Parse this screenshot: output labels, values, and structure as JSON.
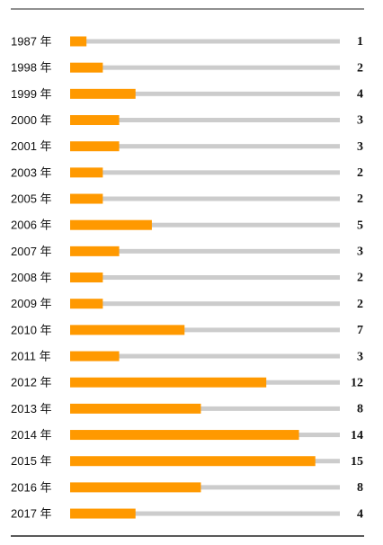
{
  "chart_data": {
    "type": "bar",
    "orientation": "horizontal",
    "categories": [
      "1987 年",
      "1998 年",
      "1999 年",
      "2000 年",
      "2001 年",
      "2003 年",
      "2005 年",
      "2006 年",
      "2007 年",
      "2008 年",
      "2009 年",
      "2010 年",
      "2011 年",
      "2012 年",
      "2013 年",
      "2014 年",
      "2015 年",
      "2016 年",
      "2017 年"
    ],
    "values": [
      1,
      2,
      4,
      3,
      3,
      2,
      2,
      5,
      3,
      2,
      2,
      7,
      3,
      12,
      8,
      14,
      15,
      8,
      4
    ],
    "color": "#ff9900",
    "track_color": "#cccccc",
    "xlim": [
      0,
      16.5
    ]
  }
}
